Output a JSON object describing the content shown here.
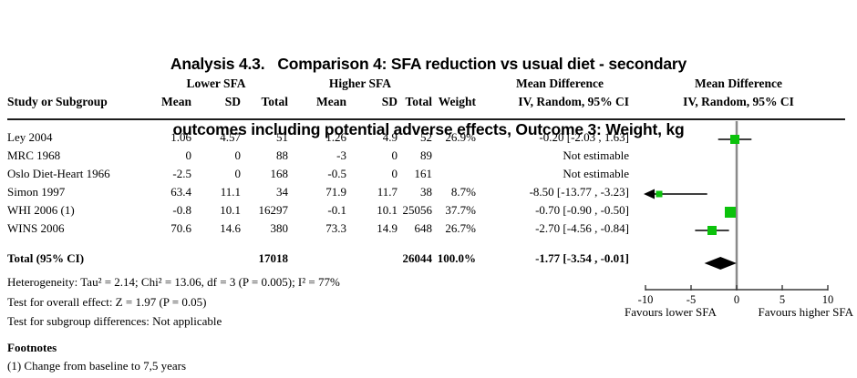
{
  "title": {
    "line1": "Analysis 4.3.   Comparison 4: SFA reduction vs usual diet - secondary",
    "line2": "outcomes including potential adverse effects, Outcome 3: Weight, kg"
  },
  "header": {
    "study": "Study or Subgroup",
    "group_lower": "Lower SFA",
    "group_higher": "Higher SFA",
    "md_title": "Mean Difference",
    "method": "IV, Random, 95% CI",
    "plot_title": "Mean Difference",
    "plot_method": "IV, Random, 95% CI",
    "cols": [
      "Mean",
      "SD",
      "Total",
      "Mean",
      "SD",
      "Total",
      "Weight"
    ]
  },
  "table": {
    "rows": [
      {
        "study": "Ley 2004",
        "mean1": "1.06",
        "sd1": "4.57",
        "total1": "51",
        "mean2": "1.26",
        "sd2": "4.9",
        "total2": "52",
        "weight": "26.9%",
        "md": "-0.20 [-2.03 , 1.63]"
      },
      {
        "study": "MRC 1968",
        "mean1": "0",
        "sd1": "0",
        "total1": "88",
        "mean2": "-3",
        "sd2": "0",
        "total2": "89",
        "weight": "",
        "md": "Not estimable"
      },
      {
        "study": "Oslo Diet-Heart 1966",
        "mean1": "-2.5",
        "sd1": "0",
        "total1": "168",
        "mean2": "-0.5",
        "sd2": "0",
        "total2": "161",
        "weight": "",
        "md": "Not estimable"
      },
      {
        "study": "Simon 1997",
        "mean1": "63.4",
        "sd1": "11.1",
        "total1": "34",
        "mean2": "71.9",
        "sd2": "11.7",
        "total2": "38",
        "weight": "8.7%",
        "md": "-8.50 [-13.77 , -3.23]"
      },
      {
        "study": "WHI 2006 (1)",
        "mean1": "-0.8",
        "sd1": "10.1",
        "total1": "16297",
        "mean2": "-0.1",
        "sd2": "10.1",
        "total2": "25056",
        "weight": "37.7%",
        "md": "-0.70 [-0.90 , -0.50]"
      },
      {
        "study": "WINS 2006",
        "mean1": "70.6",
        "sd1": "14.6",
        "total1": "380",
        "mean2": "73.3",
        "sd2": "14.9",
        "total2": "648",
        "weight": "26.7%",
        "md": "-2.70 [-4.56 , -0.84]"
      }
    ],
    "total_row": {
      "label": "Total (95% CI)",
      "total1": "17018",
      "total2": "26044",
      "weight": "100.0%",
      "md": "-1.77 [-3.54 , -0.01]"
    }
  },
  "stats": {
    "heterogeneity": "Heterogeneity: Tau² = 2.14; Chi² = 13.06, df = 3 (P = 0.005); I² = 77%",
    "overall_effect": "Test for overall effect: Z = 1.97 (P = 0.05)",
    "subgroup": "Test for subgroup differences: Not applicable"
  },
  "footnotes": {
    "heading": "Footnotes",
    "items": [
      "(1) Change from baseline to 7,5 years"
    ]
  },
  "chart_data": {
    "type": "forest",
    "effect_measure": "Mean Difference, IV, Random, 95% CI",
    "x_axis": {
      "min": -10,
      "max": 10,
      "ticks": [
        -10,
        -5,
        0,
        5,
        10
      ],
      "label_left": "Favours lower SFA",
      "label_right": "Favours higher SFA"
    },
    "studies": [
      {
        "name": "Ley 2004",
        "estimable": true,
        "md": -0.2,
        "ci_low": -2.03,
        "ci_high": 1.63,
        "weight_pct": 26.9
      },
      {
        "name": "MRC 1968",
        "estimable": false
      },
      {
        "name": "Oslo Diet-Heart 1966",
        "estimable": false
      },
      {
        "name": "Simon 1997",
        "estimable": true,
        "md": -8.5,
        "ci_low": -13.77,
        "ci_high": -3.23,
        "weight_pct": 8.7
      },
      {
        "name": "WHI 2006 (1)",
        "estimable": true,
        "md": -0.7,
        "ci_low": -0.9,
        "ci_high": -0.5,
        "weight_pct": 37.7
      },
      {
        "name": "WINS 2006",
        "estimable": true,
        "md": -2.7,
        "ci_low": -4.56,
        "ci_high": -0.84,
        "weight_pct": 26.7
      }
    ],
    "pooled": {
      "md": -1.77,
      "ci_low": -3.54,
      "ci_high": -0.01
    },
    "colors": {
      "square": "#0cc20c",
      "diamond": "#000000",
      "zero_line": "#8a8a8a",
      "axis": "#3a3a3a"
    }
  }
}
